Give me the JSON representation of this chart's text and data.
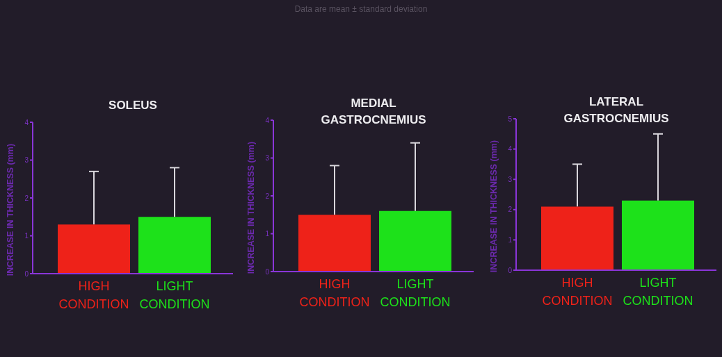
{
  "chart_data": [
    {
      "type": "bar",
      "title": "SOLEUS",
      "ylabel": "INCREASE IN THICKNESS (mm)",
      "annotations": [
        "Data are mean ± standard deviation"
      ],
      "categories": [
        "HIGH CONDITION",
        "LIGHT CONDITION"
      ],
      "values": [
        1.3,
        1.5
      ],
      "colors": [
        "#ee2219",
        "#1de11a"
      ],
      "errors": [
        [
          1.3,
          2.7
        ],
        [
          1.5,
          2.8
        ]
      ],
      "ylim": [
        0,
        4
      ],
      "yticks": [
        0,
        1,
        2,
        3,
        4
      ]
    },
    {
      "type": "bar",
      "title": "MEDIAL GASTROCNEMIUS",
      "ylabel": "INCREASE IN THICKNESS (mm)",
      "categories": [
        "HIGH CONDITION",
        "LIGHT CONDITION"
      ],
      "values": [
        1.5,
        1.6
      ],
      "colors": [
        "#ee2219",
        "#1de11a"
      ],
      "errors": [
        [
          1.5,
          2.8
        ],
        [
          1.6,
          3.4
        ]
      ],
      "ylim": [
        0,
        4
      ],
      "yticks": [
        0,
        1,
        2,
        3,
        4
      ]
    },
    {
      "type": "bar",
      "title": "LATERAL GASTROCNEMIUS",
      "ylabel": "INCREASE IN THICKNESS (mm)",
      "categories": [
        "HIGH CONDITION",
        "LIGHT CONDITION"
      ],
      "values": [
        2.1,
        2.3
      ],
      "colors": [
        "#ee2219",
        "#1de11a"
      ],
      "errors": [
        [
          2.1,
          3.5
        ],
        [
          2.3,
          4.5
        ]
      ],
      "ylim": [
        0,
        5
      ],
      "yticks": [
        0,
        1,
        2,
        3,
        4,
        5
      ]
    }
  ]
}
